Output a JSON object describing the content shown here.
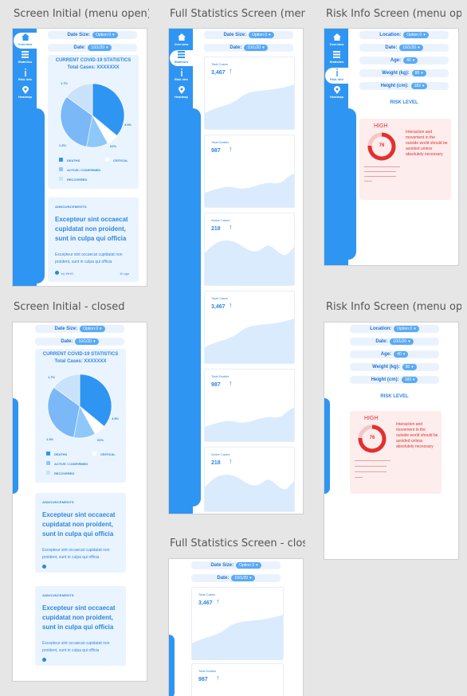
{
  "frames": {
    "f1": {
      "title": "Screen Initial (menu open)"
    },
    "f2": {
      "title": "Full Statistics Screen (menu open)"
    },
    "f3": {
      "title": "Risk Info Screen (menu open)"
    },
    "f4": {
      "title": "Screen Initial - closed"
    },
    "f5": {
      "title": "Risk Info Screen (menu open)"
    },
    "f6": {
      "title": "Full Statistics Screen - closed"
    }
  },
  "nav": {
    "overview": "Overview",
    "statistics": "Statistics",
    "risk_info": "Risk Info",
    "heatmap": "Heatmap"
  },
  "filters": {
    "date_size_label": "Date Size:",
    "date_size_value": "Option 0",
    "date_label": "Date:",
    "date_value": "10/1/20",
    "location_label": "Location:",
    "location_value": "Option 0",
    "age_label": "Age:",
    "age_value": "40",
    "weight_label": "Weight (kg):",
    "weight_value": "80",
    "height_label": "Height (cm):",
    "height_value": "183"
  },
  "overview": {
    "title": "CURRENT COVID-19 STATISTICS",
    "total": "Total Cases: XXXXXXX",
    "pct_labels": [
      "1.7%",
      "4.5%",
      "62%",
      "1.3%"
    ],
    "legend": [
      "DEATHS",
      "CRITICAL",
      "ACTIVE / CONFIRMED",
      "RECOVERED"
    ],
    "announcement": {
      "heading": "ANNOUNCEMENTS",
      "headline": "Excepteur sint occaecat cupidatat non proident, sunt in culpa qui officia",
      "body": "Excepteur sint occaecat cupidatat non proident, sunt in culpa qui officia",
      "source": "by WHO",
      "age": "1h ago"
    }
  },
  "chart_data": [
    {
      "type": "pie",
      "categories": [
        "",
        "",
        "",
        "",
        ""
      ],
      "values": [
        36,
        6,
        11,
        32,
        15
      ],
      "colors": [
        "#2f95f2",
        "#ffffff",
        "#8ec8fb",
        "#7ab8f7",
        "#c9e2fb"
      ]
    }
  ],
  "stats": [
    {
      "name": "Total Cases",
      "value": "3,467",
      "arrow": "↑"
    },
    {
      "name": "Total Deaths",
      "value": "987",
      "arrow": "↑"
    },
    {
      "name": "Active Cases",
      "value": "218",
      "arrow": "↑"
    }
  ],
  "risk": {
    "label": "RISK LEVEL",
    "level": "HIGH",
    "score": "76",
    "message": "Interaction and movement in the outside world should be avoided unless absolutely necessary"
  },
  "colors": {
    "accent": "#2f95f2",
    "risk": "#e23030",
    "card": "#eaf4fe",
    "risk_card": "#fdeded"
  }
}
